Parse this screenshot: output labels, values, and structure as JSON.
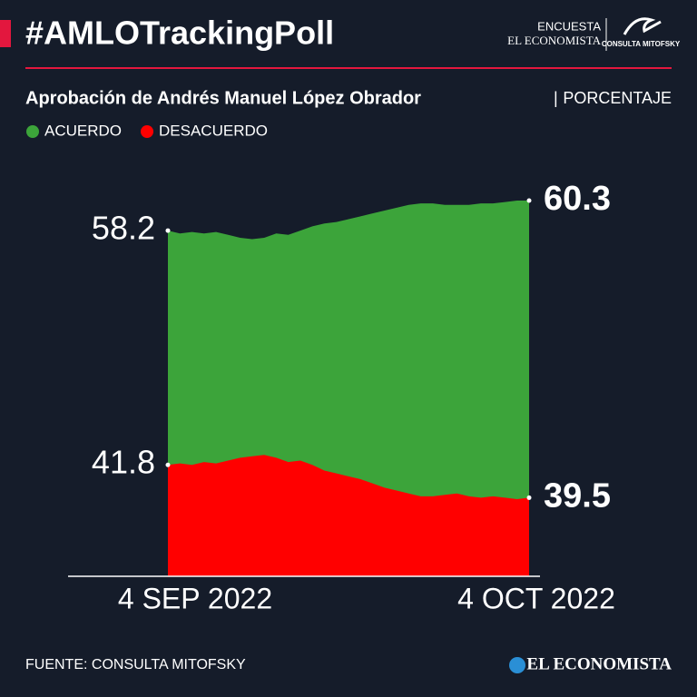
{
  "header": {
    "title": "#AMLOTrackingPoll",
    "logo_top": "ENCUESTA",
    "logo_bottom": "EL ECONOMISTA",
    "logo_right": "CONSULTA MITOFSKY"
  },
  "chart_data": {
    "type": "area",
    "title": "Aprobación de Andrés Manuel López Obrador",
    "unit": "PORCENTAJE",
    "categories": [
      "4 SEP 2022",
      null,
      null,
      null,
      null,
      null,
      null,
      null,
      null,
      null,
      null,
      null,
      null,
      null,
      null,
      null,
      null,
      null,
      null,
      null,
      null,
      null,
      null,
      null,
      null,
      null,
      null,
      null,
      null,
      null,
      "4 OCT 2022"
    ],
    "series": [
      {
        "name": "ACUERDO",
        "color": "#3ca43a",
        "values": [
          58.2,
          58.0,
          58.1,
          58.0,
          58.1,
          57.9,
          57.7,
          57.6,
          57.7,
          58.0,
          57.9,
          58.2,
          58.5,
          58.7,
          58.8,
          59.0,
          59.2,
          59.4,
          59.6,
          59.8,
          60.0,
          60.1,
          60.1,
          60.0,
          60.0,
          60.0,
          60.1,
          60.1,
          60.2,
          60.3,
          60.3
        ]
      },
      {
        "name": "DESACUERDO",
        "color": "#ff0000",
        "values": [
          41.8,
          41.9,
          41.8,
          42.0,
          41.9,
          42.1,
          42.3,
          42.4,
          42.5,
          42.3,
          42.0,
          42.1,
          41.8,
          41.4,
          41.2,
          41.0,
          40.8,
          40.5,
          40.2,
          40.0,
          39.8,
          39.6,
          39.6,
          39.7,
          39.8,
          39.6,
          39.5,
          39.6,
          39.5,
          39.4,
          39.5
        ]
      }
    ],
    "ylim": [
      34,
      61
    ]
  },
  "footer": {
    "source": "FUENTE: CONSULTA MITOFSKY",
    "brand": "EL ECONOMISTA"
  }
}
